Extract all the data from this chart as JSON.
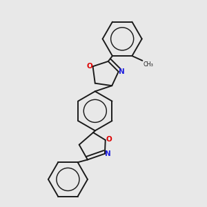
{
  "bg_color": "#e8e8e8",
  "bond_color": "#1a1a1a",
  "N_color": "#2020dd",
  "O_color": "#dd0000",
  "bond_width": 1.4,
  "dbo": 0.018,
  "figsize": [
    3.0,
    3.0
  ],
  "dpi": 100,
  "xlim": [
    0.08,
    0.92
  ],
  "ylim": [
    -0.05,
    1.05
  ]
}
